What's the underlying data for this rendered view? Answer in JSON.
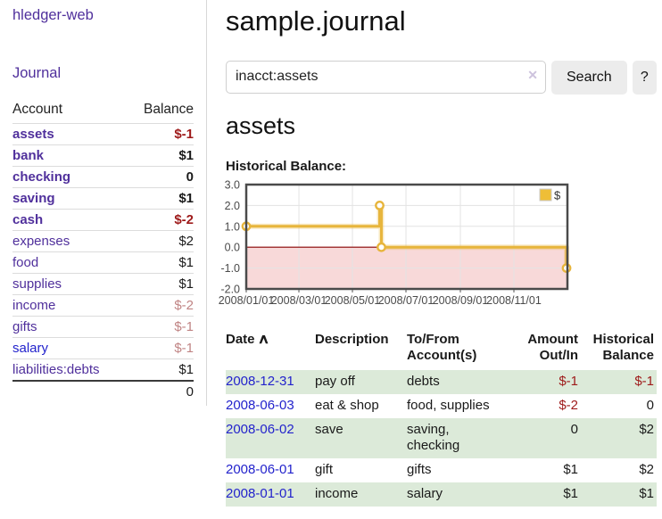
{
  "sidebar": {
    "app_title": "hledger-web",
    "nav": {
      "journal_label": "Journal"
    },
    "table_headers": {
      "account": "Account",
      "balance": "Balance"
    },
    "accounts": [
      {
        "name": "assets",
        "level": 1,
        "bold": true,
        "balance": "$-1",
        "negative": true
      },
      {
        "name": "bank",
        "level": 2,
        "bold": true,
        "balance": "$1",
        "negative": false
      },
      {
        "name": "checking",
        "level": 3,
        "bold": true,
        "balance": "0",
        "negative": false
      },
      {
        "name": "saving",
        "level": 3,
        "bold": true,
        "balance": "$1",
        "negative": false
      },
      {
        "name": "cash",
        "level": 2,
        "bold": true,
        "balance": "$-2",
        "negative": true
      },
      {
        "name": "expenses",
        "level": 1,
        "bold": false,
        "balance": "$2",
        "negative": false
      },
      {
        "name": "food",
        "level": 2,
        "bold": false,
        "balance": "$1",
        "negative": false
      },
      {
        "name": "supplies",
        "level": 2,
        "bold": false,
        "balance": "$1",
        "negative": false
      },
      {
        "name": "income",
        "level": 1,
        "bold": false,
        "balance": "$-2",
        "negative": true
      },
      {
        "name": "gifts",
        "level": 2,
        "bold": false,
        "balance": "$-1",
        "negative": true
      },
      {
        "name": "salary",
        "level": 2,
        "bold": false,
        "balance": "$-1",
        "negative": true,
        "blue": true
      },
      {
        "name": "liabilities:debts",
        "level": 1,
        "bold": false,
        "balance": "$1",
        "negative": false
      }
    ],
    "total": "0"
  },
  "main": {
    "title": "sample.journal",
    "search": {
      "value": "inacct:assets",
      "clear_icon": "✕",
      "button_label": "Search",
      "help_label": "?"
    },
    "account_heading": "assets",
    "chart_title": "Historical Balance:"
  },
  "chart_data": {
    "type": "line",
    "step": true,
    "title": "Historical Balance:",
    "xrange": [
      "2008-01-01",
      "2009-01-01"
    ],
    "ylim": [
      -2,
      3
    ],
    "yticks": [
      3,
      2,
      1,
      0,
      -1,
      -2
    ],
    "xticks": [
      {
        "date": "2008-01-01",
        "label": "2008/01/01"
      },
      {
        "date": "2008-03-01",
        "label": "2008/03/01"
      },
      {
        "date": "2008-05-01",
        "label": "2008/05/01"
      },
      {
        "date": "2008-07-01",
        "label": "2008/07/01"
      },
      {
        "date": "2008-09-01",
        "label": "2008/09/01"
      },
      {
        "date": "2008-11-01",
        "label": "2008/11/01"
      }
    ],
    "series": [
      {
        "name": "$",
        "color": "#e7b53c",
        "points": [
          [
            "2008-01-01",
            1
          ],
          [
            "2008-06-01",
            2
          ],
          [
            "2008-06-03",
            0
          ],
          [
            "2008-12-31",
            -1
          ]
        ]
      }
    ],
    "legend": {
      "label": "$",
      "position": "top-right",
      "swatch_color": "#eebe37"
    },
    "negative_fill": "#f8d9d9",
    "zero_line_color": "#8b0000",
    "grid_color": "#e3e3e3",
    "border_color": "#4a4a4a",
    "tick_label_color": "#4a4a4a"
  },
  "register": {
    "columns": [
      {
        "label": "Date",
        "align": "left",
        "sortable": true
      },
      {
        "label": "Description",
        "align": "left"
      },
      {
        "label": "To/From\nAccount(s)",
        "align": "left"
      },
      {
        "label": "Amount\nOut/In",
        "align": "right"
      },
      {
        "label": "Historical\nBalance",
        "align": "right"
      }
    ],
    "sort_icon": "∧",
    "rows": [
      {
        "date": "2008-12-31",
        "description": "pay off",
        "accounts": "debts",
        "amount": "$-1",
        "amount_negative": true,
        "balance": "$-1",
        "balance_negative": true
      },
      {
        "date": "2008-06-03",
        "description": "eat & shop",
        "accounts": "food, supplies",
        "amount": "$-2",
        "amount_negative": true,
        "balance": "0",
        "balance_negative": false
      },
      {
        "date": "2008-06-02",
        "description": "save",
        "accounts": "saving,\nchecking",
        "amount": "0",
        "amount_negative": false,
        "balance": "$2",
        "balance_negative": false
      },
      {
        "date": "2008-06-01",
        "description": "gift",
        "accounts": "gifts",
        "amount": "$1",
        "amount_negative": false,
        "balance": "$2",
        "balance_negative": false
      },
      {
        "date": "2008-01-01",
        "description": "income",
        "accounts": "salary",
        "amount": "$1",
        "amount_negative": false,
        "balance": "$1",
        "balance_negative": false
      }
    ]
  }
}
